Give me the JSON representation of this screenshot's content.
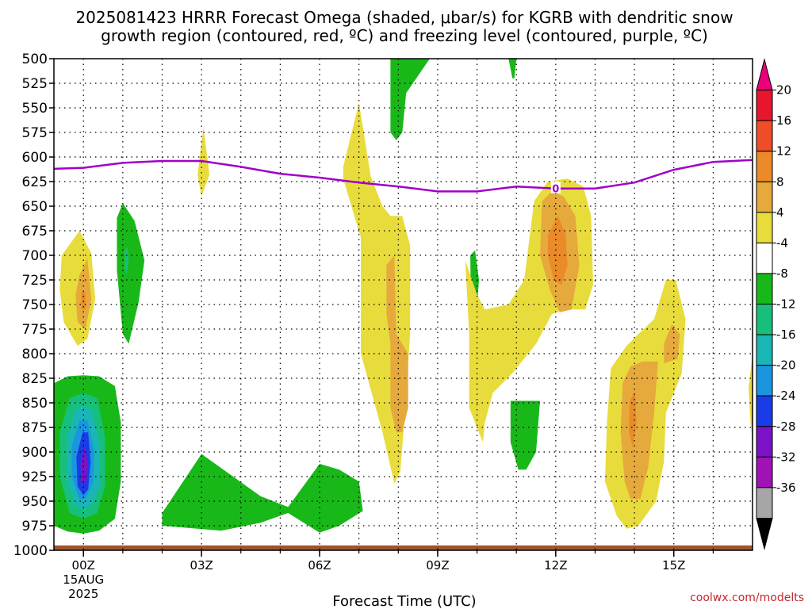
{
  "chart_data": {
    "type": "heatmap",
    "title_lines": [
      "2025081423 HRRR Forecast Omega (shaded, μbar/s) for KGRB with dendritic snow",
      "growth region (contoured, red, ºC) and freezing level (contoured, purple, ºC)"
    ],
    "xlabel": "Forecast Time (UTC)",
    "credit": "coolwx.com/modelts",
    "x_range_hours": [
      -0.75,
      17.0
    ],
    "y_range_hPa": [
      1000,
      500
    ],
    "y_ticks": [
      500,
      525,
      550,
      575,
      600,
      625,
      650,
      675,
      700,
      725,
      750,
      775,
      800,
      825,
      850,
      875,
      900,
      925,
      950,
      975,
      1000
    ],
    "x_ticks": [
      {
        "hour": 0,
        "label": "00Z",
        "sub": [
          "15AUG",
          "2025"
        ]
      },
      {
        "hour": 3,
        "label": "03Z",
        "sub": []
      },
      {
        "hour": 6,
        "label": "06Z",
        "sub": []
      },
      {
        "hour": 9,
        "label": "09Z",
        "sub": []
      },
      {
        "hour": 12,
        "label": "12Z",
        "sub": []
      },
      {
        "hour": 15,
        "label": "15Z",
        "sub": []
      }
    ],
    "grid": true,
    "colorbar": {
      "position": "right",
      "labels": [
        "20",
        "16",
        "12",
        "8",
        "4",
        "-4",
        "-8",
        "-12",
        "-16",
        "-20",
        "-24",
        "-28",
        "-32",
        "-36"
      ],
      "bins": [
        {
          "color": "#e8007c"
        },
        {
          "color": "#e8152f"
        },
        {
          "color": "#ee4d26"
        },
        {
          "color": "#ea8a28"
        },
        {
          "color": "#e5a93c"
        },
        {
          "color": "#e8dc3c"
        },
        {
          "color": "#ffffff"
        },
        {
          "color": "#19b819"
        },
        {
          "color": "#16c07a"
        },
        {
          "color": "#1ab5b5"
        },
        {
          "color": "#1a96e0"
        },
        {
          "color": "#1a3ce8"
        },
        {
          "color": "#7b12c8"
        },
        {
          "color": "#a012b5"
        },
        {
          "color": "#a6a6a6"
        },
        {
          "color": "#000000"
        }
      ]
    },
    "shaded_regions": [
      {
        "level": "-8",
        "color": "#19b819",
        "pts": [
          [
            -0.8,
            830
          ],
          [
            -0.4,
            823
          ],
          [
            0,
            822
          ],
          [
            0.4,
            823
          ],
          [
            0.8,
            833
          ],
          [
            0.95,
            870
          ],
          [
            0.95,
            930
          ],
          [
            0.8,
            968
          ],
          [
            0.4,
            980
          ],
          [
            0,
            983
          ],
          [
            -0.4,
            981
          ],
          [
            -0.8,
            975
          ]
        ]
      },
      {
        "level": "-12",
        "color": "#16c07a",
        "pts": [
          [
            -0.35,
            845
          ],
          [
            0,
            840
          ],
          [
            0.35,
            845
          ],
          [
            0.55,
            885
          ],
          [
            0.55,
            935
          ],
          [
            0.35,
            962
          ],
          [
            0,
            968
          ],
          [
            -0.35,
            962
          ],
          [
            -0.6,
            925
          ],
          [
            -0.6,
            880
          ]
        ]
      },
      {
        "level": "-16",
        "color": "#1ab5b5",
        "pts": [
          [
            -0.22,
            858
          ],
          [
            0,
            853
          ],
          [
            0.22,
            858
          ],
          [
            0.4,
            890
          ],
          [
            0.4,
            935
          ],
          [
            0.2,
            955
          ],
          [
            0,
            958
          ],
          [
            -0.2,
            955
          ],
          [
            -0.42,
            930
          ],
          [
            -0.42,
            885
          ]
        ]
      },
      {
        "level": "-20",
        "color": "#1a96e0",
        "pts": [
          [
            -0.1,
            868
          ],
          [
            0.1,
            868
          ],
          [
            0.28,
            900
          ],
          [
            0.25,
            930
          ],
          [
            0.05,
            948
          ],
          [
            -0.1,
            948
          ],
          [
            -0.3,
            925
          ],
          [
            -0.3,
            895
          ]
        ]
      },
      {
        "level": "-24",
        "color": "#1a3ce8",
        "pts": [
          [
            -0.02,
            880
          ],
          [
            0.12,
            880
          ],
          [
            0.18,
            910
          ],
          [
            0.12,
            938
          ],
          [
            0,
            944
          ],
          [
            -0.15,
            935
          ],
          [
            -0.18,
            905
          ]
        ]
      },
      {
        "level": "-28",
        "color": "#7b12c8",
        "pts": [
          [
            0.05,
            893
          ],
          [
            0.1,
            912
          ],
          [
            0.07,
            930
          ],
          [
            -0.03,
            933
          ],
          [
            -0.08,
            912
          ]
        ]
      },
      {
        "level": "-8",
        "color": "#19b819",
        "pts": [
          [
            0.85,
            662
          ],
          [
            1.0,
            647
          ],
          [
            1.3,
            665
          ],
          [
            1.55,
            705
          ],
          [
            1.4,
            748
          ],
          [
            1.15,
            790
          ],
          [
            1.0,
            780
          ],
          [
            0.85,
            715
          ]
        ]
      },
      {
        "level": "-12",
        "color": "#16c07a",
        "pts": [
          [
            1.05,
            695
          ],
          [
            1.12,
            692
          ],
          [
            1.15,
            705
          ],
          [
            1.1,
            720
          ],
          [
            1.05,
            715
          ]
        ]
      },
      {
        "level": "4",
        "color": "#e8dc3c",
        "pts": [
          [
            -0.55,
            700
          ],
          [
            -0.1,
            675
          ],
          [
            0.2,
            698
          ],
          [
            0.3,
            745
          ],
          [
            0.1,
            785
          ],
          [
            -0.15,
            792
          ],
          [
            -0.5,
            768
          ],
          [
            -0.6,
            735
          ]
        ]
      },
      {
        "level": "8",
        "color": "#e5a93c",
        "pts": [
          [
            -0.1,
            720
          ],
          [
            0.1,
            703
          ],
          [
            0.2,
            745
          ],
          [
            0.05,
            775
          ],
          [
            -0.15,
            768
          ],
          [
            -0.2,
            740
          ]
        ]
      },
      {
        "level": "12",
        "color": "#ea8a28",
        "pts": [
          [
            -0.05,
            737
          ],
          [
            0.05,
            737
          ],
          [
            0.05,
            755
          ],
          [
            -0.05,
            755
          ]
        ]
      },
      {
        "level": "4",
        "color": "#e8dc3c",
        "pts": [
          [
            2.9,
            618
          ],
          [
            3.05,
            570
          ],
          [
            3.2,
            618
          ],
          [
            3.0,
            640
          ]
        ]
      },
      {
        "level": "-8",
        "color": "#19b819",
        "pts": [
          [
            2.0,
            962
          ],
          [
            3.0,
            902
          ],
          [
            4.5,
            945
          ],
          [
            5.2,
            956
          ],
          [
            6.0,
            912
          ],
          [
            6.5,
            918
          ],
          [
            7.0,
            930
          ],
          [
            7.1,
            960
          ],
          [
            6.5,
            975
          ],
          [
            6.0,
            982
          ],
          [
            5.2,
            962
          ],
          [
            4.5,
            972
          ],
          [
            3.5,
            980
          ],
          [
            2.0,
            975
          ]
        ]
      },
      {
        "level": "4",
        "color": "#e8dc3c",
        "pts": [
          [
            6.6,
            610
          ],
          [
            7.0,
            545
          ],
          [
            7.3,
            620
          ],
          [
            7.6,
            650
          ],
          [
            7.8,
            660
          ],
          [
            8.1,
            660
          ],
          [
            8.3,
            690
          ],
          [
            8.3,
            780
          ],
          [
            8.15,
            870
          ],
          [
            8.05,
            920
          ],
          [
            7.9,
            932
          ],
          [
            7.6,
            880
          ],
          [
            7.05,
            800
          ],
          [
            7.05,
            682
          ],
          [
            6.6,
            622
          ]
        ]
      },
      {
        "level": "8",
        "color": "#e5a93c",
        "pts": [
          [
            7.7,
            710
          ],
          [
            7.9,
            700
          ],
          [
            7.95,
            780
          ],
          [
            8.25,
            800
          ],
          [
            8.25,
            855
          ],
          [
            8.1,
            880
          ],
          [
            7.95,
            880
          ],
          [
            7.8,
            855
          ],
          [
            7.8,
            790
          ],
          [
            7.7,
            760
          ]
        ]
      },
      {
        "level": "-8",
        "color": "#19b819",
        "pts": [
          [
            7.8,
            500
          ],
          [
            8.8,
            500
          ],
          [
            8.2,
            535
          ],
          [
            8.1,
            575
          ],
          [
            7.95,
            583
          ],
          [
            7.8,
            575
          ]
        ]
      },
      {
        "level": "-8",
        "color": "#19b819",
        "pts": [
          [
            9.83,
            700
          ],
          [
            9.95,
            695
          ],
          [
            10.05,
            725
          ],
          [
            9.95,
            778
          ],
          [
            9.85,
            770
          ]
        ]
      },
      {
        "level": "-8",
        "color": "#19b819",
        "pts": [
          [
            10.8,
            500
          ],
          [
            11.0,
            500
          ],
          [
            10.95,
            520
          ],
          [
            10.9,
            520
          ]
        ]
      },
      {
        "level": "4",
        "color": "#e8dc3c",
        "pts": [
          [
            9.7,
            705
          ],
          [
            10.0,
            740
          ],
          [
            10.2,
            755
          ],
          [
            10.8,
            750
          ],
          [
            11.2,
            725
          ],
          [
            11.45,
            645
          ],
          [
            11.8,
            625
          ],
          [
            12.3,
            622
          ],
          [
            12.7,
            630
          ],
          [
            12.9,
            660
          ],
          [
            12.95,
            730
          ],
          [
            12.75,
            755
          ],
          [
            12.2,
            755
          ],
          [
            11.9,
            760
          ],
          [
            11.5,
            790
          ],
          [
            10.9,
            820
          ],
          [
            10.4,
            840
          ],
          [
            10.2,
            870
          ],
          [
            10.15,
            890
          ],
          [
            10.05,
            880
          ],
          [
            9.8,
            855
          ],
          [
            9.8,
            780
          ]
        ]
      },
      {
        "level": "8",
        "color": "#e5a93c",
        "pts": [
          [
            11.65,
            645
          ],
          [
            11.9,
            635
          ],
          [
            12.2,
            640
          ],
          [
            12.5,
            660
          ],
          [
            12.6,
            710
          ],
          [
            12.4,
            755
          ],
          [
            12.1,
            758
          ],
          [
            11.85,
            735
          ],
          [
            11.6,
            700
          ]
        ]
      },
      {
        "level": "12",
        "color": "#ea8a28",
        "pts": [
          [
            11.8,
            680
          ],
          [
            12.05,
            660
          ],
          [
            12.25,
            678
          ],
          [
            12.3,
            710
          ],
          [
            12.15,
            730
          ],
          [
            11.95,
            725
          ],
          [
            11.8,
            700
          ]
        ]
      },
      {
        "level": "-8",
        "color": "#19b819",
        "pts": [
          [
            10.85,
            848
          ],
          [
            11.6,
            848
          ],
          [
            11.5,
            900
          ],
          [
            11.25,
            918
          ],
          [
            11.05,
            918
          ],
          [
            10.85,
            890
          ]
        ]
      },
      {
        "level": "4",
        "color": "#e8dc3c",
        "pts": [
          [
            13.4,
            815
          ],
          [
            13.8,
            792
          ],
          [
            14.1,
            780
          ],
          [
            14.5,
            765
          ],
          [
            14.8,
            725
          ],
          [
            15.05,
            725
          ],
          [
            15.3,
            765
          ],
          [
            15.2,
            820
          ],
          [
            14.8,
            860
          ],
          [
            14.75,
            910
          ],
          [
            14.55,
            950
          ],
          [
            14.1,
            975
          ],
          [
            13.8,
            978
          ],
          [
            13.55,
            965
          ],
          [
            13.25,
            930
          ],
          [
            13.3,
            870
          ]
        ]
      },
      {
        "level": "8",
        "color": "#e5a93c",
        "pts": [
          [
            13.7,
            830
          ],
          [
            13.9,
            813
          ],
          [
            14.2,
            808
          ],
          [
            14.6,
            808
          ],
          [
            14.5,
            860
          ],
          [
            14.35,
            915
          ],
          [
            14.15,
            948
          ],
          [
            13.9,
            948
          ],
          [
            13.75,
            930
          ],
          [
            13.65,
            880
          ]
        ]
      },
      {
        "level": "8",
        "color": "#e5a93c",
        "pts": [
          [
            14.75,
            790
          ],
          [
            14.95,
            770
          ],
          [
            15.15,
            780
          ],
          [
            15.1,
            805
          ],
          [
            14.75,
            810
          ]
        ]
      },
      {
        "level": "12",
        "color": "#ea8a28",
        "pts": [
          [
            13.88,
            848
          ],
          [
            14.02,
            838
          ],
          [
            14.05,
            870
          ],
          [
            13.96,
            895
          ],
          [
            13.86,
            880
          ]
        ]
      },
      {
        "level": "4",
        "color": "#e8dc3c",
        "pts": [
          [
            17.0,
            800
          ],
          [
            16.9,
            835
          ],
          [
            16.95,
            870
          ],
          [
            17.0,
            890
          ]
        ]
      }
    ],
    "freezing_level_line": {
      "color": "#a000c8",
      "label": "0",
      "label_at": [
        12.0,
        632
      ],
      "pts": [
        [
          -0.75,
          612
        ],
        [
          0,
          611
        ],
        [
          1,
          606
        ],
        [
          2,
          604
        ],
        [
          3,
          604
        ],
        [
          4,
          610
        ],
        [
          5,
          617
        ],
        [
          6,
          621
        ],
        [
          7,
          626
        ],
        [
          8,
          630
        ],
        [
          9,
          635
        ],
        [
          10,
          635
        ],
        [
          11,
          630
        ],
        [
          12,
          632
        ],
        [
          13,
          632
        ],
        [
          14,
          626
        ],
        [
          15,
          613
        ],
        [
          16,
          605
        ],
        [
          17,
          603
        ]
      ]
    },
    "terrain": {
      "color": "#a2542b",
      "top_hPa": 995
    }
  }
}
